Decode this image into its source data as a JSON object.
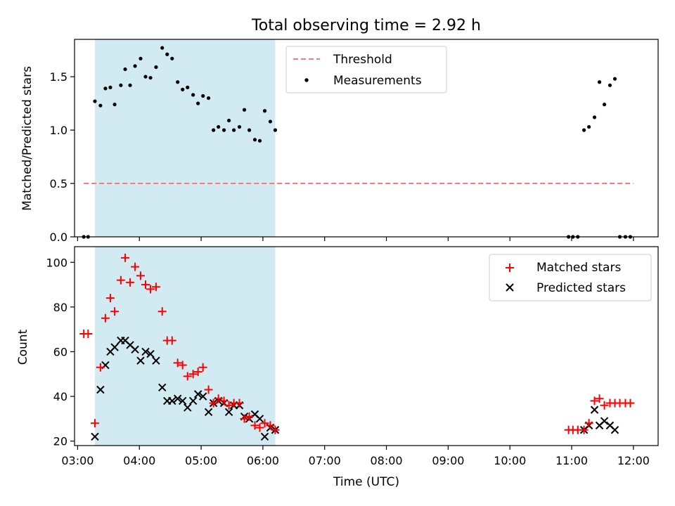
{
  "figure": {
    "title": "Total observing time = 2.92 h",
    "xlabel": "Time (UTC)",
    "x_tick_labels": [
      "03:00",
      "04:00",
      "05:00",
      "06:00",
      "07:00",
      "08:00",
      "09:00",
      "10:00",
      "11:00",
      "12:00"
    ],
    "shaded_interval_hours": [
      3.28,
      6.2
    ],
    "shade_color": "#add8e6"
  },
  "chart_data": [
    {
      "type": "scatter",
      "ylabel": "Matched/Predicted stars",
      "xlim": [
        2.95,
        12.4
      ],
      "ylim": [
        0,
        1.85
      ],
      "y_ticks": [
        0.0,
        0.5,
        1.0,
        1.5
      ],
      "y_tick_labels": [
        "0.0",
        "0.5",
        "1.0",
        "1.5"
      ],
      "legend_position": "top-center",
      "threshold": {
        "name": "Threshold",
        "value": 0.5,
        "x_range": [
          3.1,
          12.0
        ],
        "color": "#ff7777"
      },
      "series": [
        {
          "name": "Measurements",
          "color": "#000000",
          "x": [
            3.1,
            3.17,
            3.28,
            3.37,
            3.45,
            3.53,
            3.6,
            3.7,
            3.77,
            3.85,
            3.93,
            4.02,
            4.1,
            4.18,
            4.27,
            4.37,
            4.45,
            4.53,
            4.62,
            4.7,
            4.78,
            4.87,
            4.95,
            5.03,
            5.12,
            5.2,
            5.28,
            5.37,
            5.45,
            5.53,
            5.62,
            5.7,
            5.78,
            5.87,
            5.95,
            6.03,
            6.12,
            6.2,
            10.95,
            11.02,
            11.1,
            11.2,
            11.28,
            11.37,
            11.45,
            11.53,
            11.62,
            11.7,
            11.78,
            11.87,
            11.95
          ],
          "y": [
            0,
            0,
            1.27,
            1.23,
            1.39,
            1.4,
            1.24,
            1.42,
            1.57,
            1.42,
            1.6,
            1.67,
            1.5,
            1.49,
            1.59,
            1.77,
            1.71,
            1.67,
            1.45,
            1.38,
            1.4,
            1.33,
            1.25,
            1.32,
            1.3,
            1.0,
            1.03,
            1.0,
            1.09,
            1.0,
            1.03,
            1.19,
            1.0,
            0.91,
            0.9,
            1.18,
            1.08,
            1.0,
            0,
            0,
            0,
            1.0,
            1.03,
            1.12,
            1.45,
            1.24,
            1.42,
            1.48,
            0,
            0,
            0
          ]
        }
      ]
    },
    {
      "type": "scatter",
      "xlabel": "Time (UTC)",
      "ylabel": "Count",
      "xlim": [
        2.95,
        12.4
      ],
      "ylim": [
        18,
        107
      ],
      "y_ticks": [
        20,
        40,
        60,
        80,
        100
      ],
      "y_tick_labels": [
        "20",
        "40",
        "60",
        "80",
        "100"
      ],
      "legend_position": "top-right",
      "series": [
        {
          "name": "Matched stars",
          "marker": "plus",
          "color": "#ff0000",
          "x": [
            3.1,
            3.17,
            3.28,
            3.37,
            3.45,
            3.53,
            3.6,
            3.7,
            3.77,
            3.85,
            3.93,
            4.02,
            4.1,
            4.18,
            4.27,
            4.37,
            4.45,
            4.53,
            4.62,
            4.7,
            4.78,
            4.87,
            4.95,
            5.03,
            5.12,
            5.2,
            5.28,
            5.37,
            5.45,
            5.53,
            5.62,
            5.7,
            5.78,
            5.87,
            5.95,
            6.03,
            6.12,
            6.2,
            10.95,
            11.02,
            11.1,
            11.2,
            11.28,
            11.37,
            11.45,
            11.53,
            11.62,
            11.7,
            11.78,
            11.87,
            11.95
          ],
          "y": [
            68,
            68,
            28,
            53,
            75,
            84,
            78,
            92,
            102,
            91,
            98,
            94,
            90,
            88,
            89,
            78,
            65,
            65,
            55,
            54,
            49,
            50,
            51,
            53,
            43,
            37,
            39,
            38,
            36,
            37,
            37,
            30,
            31,
            27,
            26,
            28,
            27,
            25,
            25,
            25,
            25,
            25,
            28,
            38,
            39,
            36,
            37,
            37,
            37,
            37,
            37
          ]
        },
        {
          "name": "Predicted stars",
          "marker": "x",
          "color": "#000000",
          "x": [
            3.28,
            3.37,
            3.45,
            3.53,
            3.6,
            3.7,
            3.77,
            3.85,
            3.93,
            4.02,
            4.1,
            4.18,
            4.27,
            4.37,
            4.45,
            4.53,
            4.62,
            4.7,
            4.78,
            4.87,
            4.95,
            5.03,
            5.12,
            5.2,
            5.28,
            5.37,
            5.45,
            5.53,
            5.62,
            5.7,
            5.78,
            5.87,
            5.95,
            6.03,
            6.12,
            6.2,
            11.2,
            11.28,
            11.37,
            11.45,
            11.53,
            11.62,
            11.7
          ],
          "y": [
            22,
            43,
            54,
            60,
            62,
            65,
            65,
            63,
            61,
            56,
            60,
            59,
            56,
            44,
            38,
            38,
            39,
            38,
            35,
            38,
            41,
            40,
            33,
            37,
            38,
            37,
            33,
            36,
            36,
            31,
            30,
            32,
            30,
            22,
            26,
            25,
            25,
            27,
            34,
            27,
            29,
            27,
            25
          ]
        }
      ]
    }
  ]
}
